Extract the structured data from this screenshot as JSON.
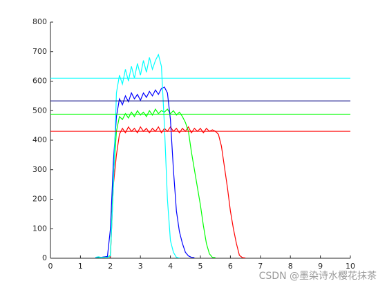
{
  "chart_data": {
    "type": "line",
    "x": [
      1.5,
      1.6,
      1.7,
      1.8,
      1.9,
      2.0,
      2.1,
      2.2,
      2.3,
      2.4,
      2.5,
      2.6,
      2.7,
      2.8,
      2.9,
      3.0,
      3.1,
      3.2,
      3.3,
      3.4,
      3.5,
      3.6,
      3.7,
      3.8,
      3.9,
      4.0,
      4.1,
      4.2,
      4.3,
      4.4,
      4.5,
      4.6,
      4.7,
      4.8,
      4.9,
      5.0,
      5.1,
      5.2,
      5.3,
      5.4,
      5.5,
      5.6,
      5.7,
      5.8,
      5.9,
      6.0,
      6.1,
      6.2,
      6.3,
      6.4,
      6.5
    ],
    "series": [
      {
        "color": "#ff0000",
        "values": [
          2,
          3,
          2,
          3,
          4,
          5,
          250,
          350,
          420,
          440,
          425,
          445,
          430,
          440,
          425,
          445,
          430,
          440,
          425,
          440,
          430,
          445,
          425,
          440,
          430,
          445,
          430,
          440,
          425,
          440,
          430,
          445,
          425,
          440,
          430,
          440,
          425,
          440,
          430,
          435,
          430,
          420,
          380,
          310,
          240,
          160,
          100,
          50,
          10,
          2,
          1
        ]
      },
      {
        "color": "#00ff00",
        "values": [
          2,
          3,
          2,
          4,
          3,
          10,
          280,
          430,
          480,
          470,
          490,
          475,
          495,
          480,
          500,
          485,
          495,
          480,
          500,
          485,
          505,
          490,
          500,
          495,
          505,
          490,
          500,
          485,
          495,
          480,
          460,
          430,
          360,
          300,
          240,
          180,
          110,
          50,
          15,
          3,
          2,
          null,
          null,
          null,
          null,
          null,
          null,
          null,
          null,
          null,
          null
        ]
      },
      {
        "color": "#0000ff",
        "values": [
          2,
          4,
          3,
          5,
          6,
          100,
          330,
          480,
          540,
          520,
          550,
          530,
          560,
          540,
          555,
          535,
          560,
          545,
          565,
          550,
          570,
          555,
          575,
          580,
          560,
          470,
          300,
          160,
          90,
          50,
          20,
          8,
          3,
          2,
          null,
          null,
          null,
          null,
          null,
          null,
          null,
          null,
          null,
          null,
          null,
          null,
          null,
          null,
          null,
          null,
          null
        ]
      },
      {
        "color": "#00ffff",
        "values": [
          3,
          5,
          2,
          4,
          3,
          8,
          250,
          560,
          620,
          590,
          640,
          600,
          650,
          610,
          660,
          620,
          670,
          630,
          680,
          640,
          670,
          690,
          650,
          450,
          200,
          60,
          20,
          3,
          1,
          null,
          null,
          null,
          null,
          null,
          null,
          null,
          null,
          null,
          null,
          null,
          null,
          null,
          null,
          null,
          null,
          null,
          null,
          null,
          null,
          null,
          null
        ]
      }
    ],
    "hlines": [
      {
        "value": 610,
        "color": "#00ffff"
      },
      {
        "value": 533,
        "color": "#000080"
      },
      {
        "value": 488,
        "color": "#00ff00"
      },
      {
        "value": 430,
        "color": "#ff0000"
      }
    ],
    "xlim": [
      0,
      10
    ],
    "xticks": [
      0,
      1,
      2,
      3,
      4,
      5,
      6,
      7,
      8,
      9,
      10
    ],
    "ylim": [
      0,
      800
    ],
    "yticks": [
      0,
      100,
      200,
      300,
      400,
      500,
      600,
      700,
      800
    ],
    "annotation": "CSDN @墨染诗水樱花抹茶"
  }
}
